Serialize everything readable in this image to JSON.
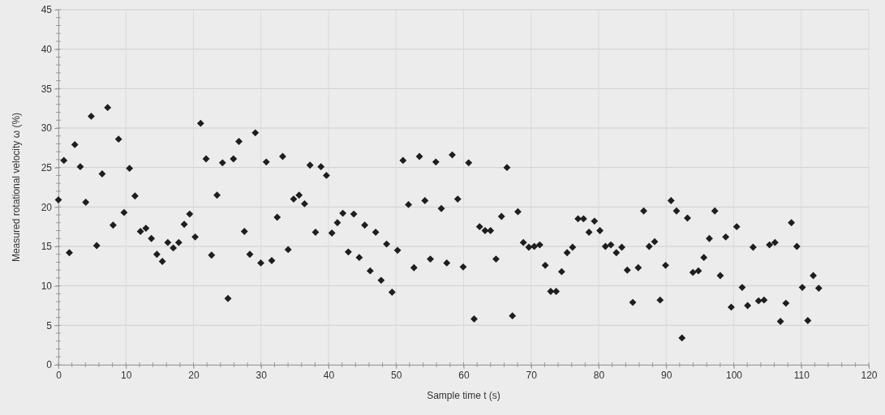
{
  "chart_data": {
    "type": "scatter",
    "xlabel": "Sample time t (s)",
    "ylabel": "Measured rotational velocity ω (%)",
    "xlim": [
      0,
      120
    ],
    "xticks": [
      0,
      10,
      20,
      30,
      40,
      50,
      60,
      70,
      80,
      90,
      100,
      110,
      120
    ],
    "ylim": [
      0,
      45
    ],
    "yticks": [
      0,
      5,
      10,
      15,
      20,
      25,
      30,
      35,
      40,
      45
    ],
    "grid": true,
    "marker": "diamond",
    "series": [
      {
        "color": "#1e1e1e",
        "x": [
          0,
          0.81,
          1.62,
          2.43,
          3.24,
          4.05,
          4.86,
          5.67,
          6.48,
          7.29,
          8.1,
          8.91,
          9.72,
          10.53,
          11.34,
          12.15,
          12.96,
          13.77,
          14.58,
          15.39,
          16.2,
          17.01,
          17.82,
          18.63,
          19.44,
          20.25,
          21.06,
          21.87,
          22.68,
          23.49,
          24.3,
          25.11,
          25.92,
          26.73,
          27.54,
          28.35,
          29.16,
          29.97,
          30.78,
          31.59,
          32.4,
          33.21,
          34.02,
          34.83,
          35.64,
          36.45,
          37.26,
          38.07,
          38.88,
          39.69,
          40.5,
          41.31,
          42.12,
          42.93,
          43.74,
          44.55,
          45.36,
          46.17,
          46.98,
          47.79,
          48.6,
          49.41,
          50.22,
          51.03,
          51.84,
          52.65,
          53.46,
          54.27,
          55.08,
          55.89,
          56.7,
          57.51,
          58.32,
          59.13,
          59.94,
          60.75,
          61.56,
          62.37,
          63.18,
          63.99,
          64.8,
          65.61,
          66.42,
          67.23,
          68.04,
          68.85,
          69.66,
          70.47,
          71.28,
          72.09,
          72.9,
          73.71,
          74.52,
          75.33,
          76.14,
          76.95,
          77.76,
          78.57,
          79.38,
          80.19,
          81,
          81.81,
          82.62,
          83.43,
          84.24,
          85.05,
          85.86,
          86.67,
          87.48,
          88.29,
          89.1,
          89.91,
          90.72,
          91.53,
          92.34,
          93.15,
          93.96,
          94.77,
          95.58,
          96.39,
          97.2,
          98.01,
          98.82,
          99.63,
          100.44,
          101.25,
          102.06,
          102.87,
          103.68,
          104.49,
          105.3,
          106.11,
          106.92,
          107.73,
          108.54,
          109.35,
          110.16,
          110.97,
          111.78,
          112.59
        ],
        "values": [
          20.9,
          25.9,
          14.2,
          27.9,
          25.1,
          20.6,
          31.5,
          15.1,
          24.2,
          32.6,
          17.7,
          28.6,
          19.3,
          24.9,
          21.4,
          16.9,
          17.3,
          16,
          14,
          13.1,
          15.5,
          14.8,
          15.5,
          17.8,
          19.1,
          16.2,
          30.6,
          26.1,
          13.9,
          21.5,
          25.6,
          8.4,
          26.1,
          28.3,
          16.9,
          14,
          29.4,
          12.9,
          25.7,
          13.2,
          18.7,
          26.4,
          14.6,
          21,
          21.5,
          20.4,
          25.3,
          16.8,
          25.1,
          24,
          16.7,
          18,
          19.2,
          14.3,
          19.1,
          13.6,
          17.7,
          11.9,
          16.8,
          10.7,
          15.3,
          9.2,
          14.5,
          25.9,
          20.3,
          12.3,
          26.4,
          20.8,
          13.4,
          25.7,
          19.8,
          12.9,
          26.6,
          21,
          12.4,
          25.6,
          5.8,
          17.5,
          17,
          17,
          13.4,
          18.8,
          25,
          6.2,
          19.4,
          15.5,
          14.9,
          15,
          15.2,
          12.6,
          9.3,
          9.3,
          11.8,
          14.2,
          14.9,
          18.5,
          18.5,
          16.8,
          18.2,
          17,
          15,
          15.2,
          14.2,
          14.9,
          12,
          7.9,
          12.3,
          19.5,
          15,
          15.6,
          8.2,
          12.6,
          20.8,
          19.5,
          3.4,
          18.6,
          11.7,
          11.9,
          13.6,
          16,
          19.5,
          11.3,
          16.2,
          7.3,
          17.5,
          9.8,
          7.5,
          14.9,
          8.1,
          8.2,
          15.2,
          15.5,
          5.5,
          7.8,
          18,
          15,
          9.8,
          5.6,
          11.3,
          9.7
        ]
      }
    ]
  }
}
